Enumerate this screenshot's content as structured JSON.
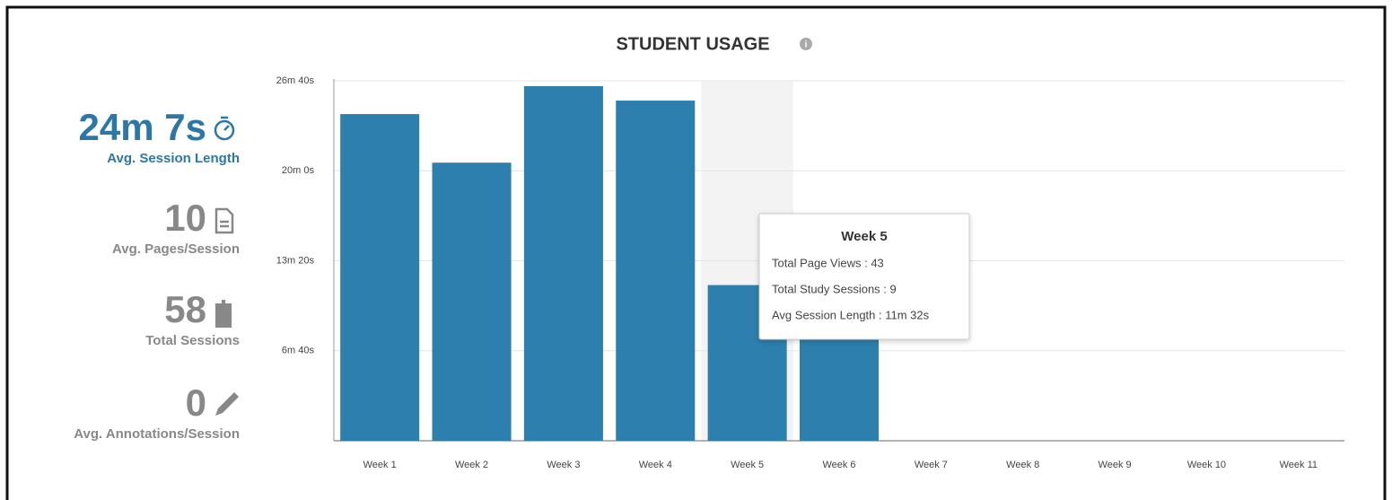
{
  "chart_data": {
    "type": "bar",
    "title": "STUDENT USAGE",
    "categories": [
      "Week 1",
      "Week 2",
      "Week 3",
      "Week 4",
      "Week 5",
      "Week 6",
      "Week 7",
      "Week 8",
      "Week 9",
      "Week 10",
      "Week 11"
    ],
    "values": [
      1452,
      1236,
      1576,
      1512,
      692,
      524,
      0,
      0,
      0,
      0,
      0
    ],
    "color": "#2d7fad",
    "ylim": [
      0,
      1600
    ],
    "yticks": [
      {
        "value": 400,
        "label": "6m 40s"
      },
      {
        "value": 800,
        "label": "13m 20s"
      },
      {
        "value": 1200,
        "label": "20m 0s"
      },
      {
        "value": 1600,
        "label": "26m 40s"
      }
    ],
    "grid": true,
    "highlight": 4,
    "tooltip": {
      "title": "Week 5",
      "lines": [
        "Total Page Views : 43",
        "Total Study Sessions : 9",
        "Avg Session Length : 11m 32s"
      ]
    }
  },
  "stats": [
    {
      "value": "24m 7s",
      "label": "Avg. Session Length"
    },
    {
      "value": 10,
      "label": "Avg. Pages/Session"
    },
    {
      "value": 58,
      "label": "Total Sessions"
    },
    {
      "value": 0,
      "label": "Avg. Annotations/Session"
    }
  ]
}
